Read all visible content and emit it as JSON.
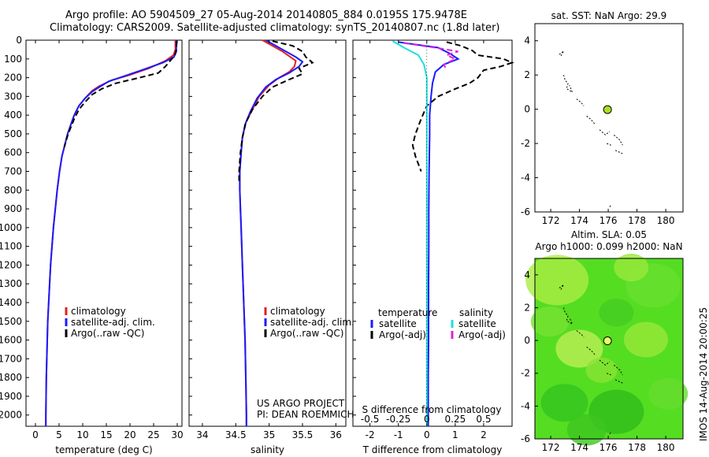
{
  "header": {
    "line1": "Argo profile: AO 5904509_27 05-Aug-2014 20140805_884 0.0195S 175.9478E",
    "line2": "Climatology: CARS2009. Satellite-adjusted climatology: synTS_20140807.nc (1.8d later)"
  },
  "stamp": "IMOS 14-Aug-2014 20:00:25",
  "colors": {
    "climatology": "#e02020",
    "satellite": "#1a1aff",
    "argo": "#000000",
    "sal_satellite": "#22dddd",
    "sal_argo": "#dd22dd",
    "marker": "#a8e01e",
    "map_bg": "#55dd22"
  },
  "chart_data": [
    {
      "type": "line",
      "id": "temperature",
      "xlabel": "temperature (deg C)",
      "xlim": [
        -2,
        31
      ],
      "xticks": [
        0,
        5,
        10,
        15,
        20,
        25,
        30
      ],
      "ylim": [
        2060,
        0
      ],
      "yticks": [
        0,
        100,
        200,
        300,
        400,
        500,
        600,
        700,
        800,
        900,
        1000,
        1100,
        1200,
        1300,
        1400,
        1500,
        1600,
        1700,
        1800,
        1900,
        2000
      ],
      "legend": [
        "climatology",
        "satellite-adj. clim.",
        "Argo(..raw -QC)"
      ],
      "series": [
        {
          "name": "climatology",
          "color": "#e02020",
          "points": [
            [
              29.6,
              0
            ],
            [
              29.6,
              50
            ],
            [
              29.2,
              80
            ],
            [
              27.5,
              110
            ],
            [
              24,
              150
            ],
            [
              20,
              185
            ],
            [
              16,
              215
            ],
            [
              13.5,
              245
            ],
            [
              12,
              270
            ],
            [
              10.5,
              310
            ],
            [
              9.2,
              350
            ],
            [
              8.2,
              400
            ],
            [
              7.5,
              450
            ],
            [
              6.8,
              500
            ],
            [
              6.2,
              560
            ],
            [
              5.6,
              620
            ],
            [
              5.1,
              700
            ],
            [
              4.6,
              800
            ],
            [
              4.2,
              900
            ],
            [
              3.8,
              1000
            ],
            [
              3.5,
              1100
            ],
            [
              3.2,
              1200
            ],
            [
              3,
              1300
            ],
            [
              2.8,
              1400
            ],
            [
              2.6,
              1500
            ],
            [
              2.5,
              1600
            ],
            [
              2.4,
              1700
            ],
            [
              2.3,
              1800
            ],
            [
              2.25,
              1900
            ],
            [
              2.2,
              2000
            ],
            [
              2.2,
              2060
            ]
          ]
        },
        {
          "name": "satellite-adj. clim.",
          "color": "#1a1aff",
          "points": [
            [
              29.8,
              0
            ],
            [
              29.8,
              60
            ],
            [
              29.3,
              90
            ],
            [
              27,
              120
            ],
            [
              23,
              155
            ],
            [
              19,
              190
            ],
            [
              15.5,
              220
            ],
            [
              13.5,
              250
            ],
            [
              12,
              275
            ],
            [
              10.5,
              310
            ],
            [
              9.2,
              350
            ],
            [
              8.2,
              400
            ],
            [
              7.5,
              450
            ],
            [
              6.8,
              500
            ],
            [
              6.2,
              560
            ],
            [
              5.6,
              620
            ],
            [
              5.1,
              700
            ],
            [
              4.6,
              800
            ],
            [
              4.2,
              900
            ],
            [
              3.8,
              1000
            ],
            [
              3.5,
              1100
            ],
            [
              3.2,
              1200
            ],
            [
              3,
              1300
            ],
            [
              2.8,
              1400
            ],
            [
              2.6,
              1500
            ],
            [
              2.5,
              1600
            ],
            [
              2.4,
              1700
            ],
            [
              2.3,
              1800
            ],
            [
              2.25,
              1900
            ],
            [
              2.2,
              2000
            ],
            [
              2.2,
              2060
            ]
          ]
        },
        {
          "name": "Argo(..raw -QC)",
          "color": "#000000",
          "points": [
            [
              29.9,
              5
            ],
            [
              29.8,
              50
            ],
            [
              29.5,
              80
            ],
            [
              28.5,
              110
            ],
            [
              27.5,
              140
            ],
            [
              26,
              175
            ],
            [
              22,
              200
            ],
            [
              17,
              230
            ],
            [
              14,
              260
            ],
            [
              12,
              290
            ],
            [
              10.5,
              330
            ],
            [
              9.2,
              370
            ],
            [
              8.2,
              420
            ],
            [
              7.4,
              470
            ],
            [
              6.8,
              510
            ],
            [
              6.1,
              570
            ]
          ]
        }
      ]
    },
    {
      "type": "line",
      "id": "salinity",
      "xlabel": "salinity",
      "xlim": [
        33.8,
        36.15
      ],
      "xticks": [
        34,
        34.5,
        35,
        35.5,
        36
      ],
      "ylim": [
        2060,
        0
      ],
      "legend": [
        "climatology",
        "satellite-adj. clim.",
        "Argo(..raw -QC)"
      ],
      "annotation": [
        "US ARGO PROJECT",
        "PI: DEAN ROEMMICH"
      ],
      "series": [
        {
          "name": "climatology",
          "color": "#e02020",
          "points": [
            [
              34.9,
              0
            ],
            [
              35.05,
              30
            ],
            [
              35.2,
              60
            ],
            [
              35.3,
              85
            ],
            [
              35.4,
              110
            ],
            [
              35.38,
              140
            ],
            [
              35.3,
              170
            ],
            [
              35.15,
              200
            ],
            [
              35,
              240
            ],
            [
              34.85,
              300
            ],
            [
              34.75,
              370
            ],
            [
              34.65,
              440
            ],
            [
              34.6,
              520
            ],
            [
              34.58,
              600
            ],
            [
              34.56,
              700
            ],
            [
              34.56,
              800
            ],
            [
              34.57,
              900
            ],
            [
              34.58,
              1000
            ],
            [
              34.6,
              1200
            ],
            [
              34.62,
              1400
            ],
            [
              34.64,
              1600
            ],
            [
              34.65,
              1800
            ],
            [
              34.66,
              2000
            ],
            [
              34.66,
              2060
            ]
          ]
        },
        {
          "name": "satellite-adj. clim.",
          "color": "#1a1aff",
          "points": [
            [
              34.95,
              0
            ],
            [
              35.1,
              30
            ],
            [
              35.25,
              60
            ],
            [
              35.4,
              90
            ],
            [
              35.5,
              115
            ],
            [
              35.45,
              140
            ],
            [
              35.3,
              175
            ],
            [
              35.1,
              210
            ],
            [
              34.95,
              250
            ],
            [
              34.82,
              310
            ],
            [
              34.72,
              380
            ],
            [
              34.64,
              450
            ],
            [
              34.6,
              520
            ],
            [
              34.58,
              600
            ],
            [
              34.56,
              700
            ],
            [
              34.56,
              800
            ],
            [
              34.57,
              900
            ],
            [
              34.58,
              1000
            ],
            [
              34.6,
              1200
            ],
            [
              34.62,
              1400
            ],
            [
              34.64,
              1600
            ],
            [
              34.65,
              1800
            ],
            [
              34.66,
              2000
            ],
            [
              34.66,
              2060
            ]
          ]
        },
        {
          "name": "Argo(..raw -QC)",
          "color": "#000000",
          "points": [
            [
              35.05,
              5
            ],
            [
              35.35,
              30
            ],
            [
              35.5,
              60
            ],
            [
              35.55,
              90
            ],
            [
              35.65,
              120
            ],
            [
              35.45,
              150
            ],
            [
              35.5,
              180
            ],
            [
              35.3,
              210
            ],
            [
              35.05,
              250
            ],
            [
              34.9,
              300
            ],
            [
              34.75,
              370
            ],
            [
              34.65,
              440
            ],
            [
              34.6,
              520
            ],
            [
              34.57,
              600
            ],
            [
              34.55,
              700
            ],
            [
              34.55,
              760
            ]
          ]
        }
      ]
    },
    {
      "type": "line",
      "id": "difference",
      "xlabel": "T difference from climatology",
      "xlabel2": "S difference from climatology",
      "xlim": [
        -2.6,
        3
      ],
      "xticks": [
        -2,
        -1,
        0,
        1,
        2
      ],
      "xticks2": [
        -0.5,
        -0.25,
        0,
        0.25,
        0.5
      ],
      "ylim": [
        2060,
        0
      ],
      "legend": {
        "temperature_title": "temperature",
        "salinity_title": "salinity",
        "temperature_items": [
          "satellite",
          "Argo(-adj)"
        ],
        "salinity_items": [
          "satellite",
          "Argo(-adj)"
        ]
      },
      "series": [
        {
          "name": "temperature satellite",
          "color": "#1a1aff",
          "points": [
            [
              -1,
              10
            ],
            [
              0.4,
              40
            ],
            [
              0.8,
              70
            ],
            [
              1.1,
              100
            ],
            [
              0.6,
              130
            ],
            [
              0.3,
              170
            ],
            [
              0.2,
              230
            ],
            [
              0.15,
              300
            ],
            [
              0.1,
              400
            ],
            [
              0.1,
              500
            ],
            [
              0.08,
              700
            ],
            [
              0.07,
              900
            ],
            [
              0.07,
              1100
            ],
            [
              0.06,
              1300
            ],
            [
              0.06,
              1600
            ],
            [
              0.05,
              1800
            ],
            [
              0.05,
              2060
            ]
          ]
        },
        {
          "name": "temperature Argo(-adj)",
          "color": "#000000",
          "points": [
            [
              0.7,
              10
            ],
            [
              1.2,
              30
            ],
            [
              1.6,
              55
            ],
            [
              1.8,
              80
            ],
            [
              2.7,
              100
            ],
            [
              3,
              120
            ],
            [
              2.6,
              140
            ],
            [
              2,
              160
            ],
            [
              1.8,
              200
            ],
            [
              1.5,
              230
            ],
            [
              1,
              260
            ],
            [
              0.4,
              300
            ],
            [
              0,
              350
            ],
            [
              -0.2,
              420
            ],
            [
              -0.4,
              500
            ],
            [
              -0.5,
              560
            ],
            [
              -0.4,
              620
            ],
            [
              -0.2,
              700
            ]
          ]
        },
        {
          "name": "salinity satellite",
          "color": "#22dddd",
          "points": [
            [
              -1.2,
              5
            ],
            [
              -0.8,
              40
            ],
            [
              -0.3,
              80
            ],
            [
              -0.1,
              130
            ],
            [
              0,
              200
            ],
            [
              0,
              300
            ],
            [
              0,
              500
            ],
            [
              0,
              800
            ],
            [
              0,
              1200
            ],
            [
              0,
              1600
            ],
            [
              0,
              2060
            ]
          ]
        },
        {
          "name": "salinity Argo(-adj)",
          "color": "#dd22dd",
          "points": [
            [
              -0.8,
              15
            ],
            [
              0.3,
              40
            ],
            [
              1.1,
              60
            ],
            [
              0.7,
              80
            ],
            [
              1,
              100
            ],
            [
              0.6,
              130
            ],
            [
              0.7,
              160
            ]
          ]
        }
      ]
    },
    {
      "type": "scatter",
      "id": "sst-map",
      "title": "sat. SST: NaN Argo: 29.9",
      "xlim": [
        170.9,
        181.2
      ],
      "ylim": [
        -6,
        5
      ],
      "xticks": [
        172,
        174,
        176,
        178,
        180
      ],
      "yticks": [
        -6,
        -4,
        -2,
        0,
        2,
        4
      ],
      "marker": {
        "x": 175.95,
        "y": -0.02
      }
    },
    {
      "type": "heatmap",
      "id": "sla-map",
      "title_line1": "Altim. SLA: 0.05",
      "title_line2": "Argo h1000: 0.099 h2000: NaN",
      "xlim": [
        170.9,
        181.2
      ],
      "ylim": [
        -6,
        5
      ],
      "xticks": [
        172,
        174,
        176,
        178,
        180
      ],
      "yticks": [
        -6,
        -4,
        -2,
        0,
        2,
        4
      ],
      "marker": {
        "x": 175.95,
        "y": -0.02
      }
    }
  ]
}
